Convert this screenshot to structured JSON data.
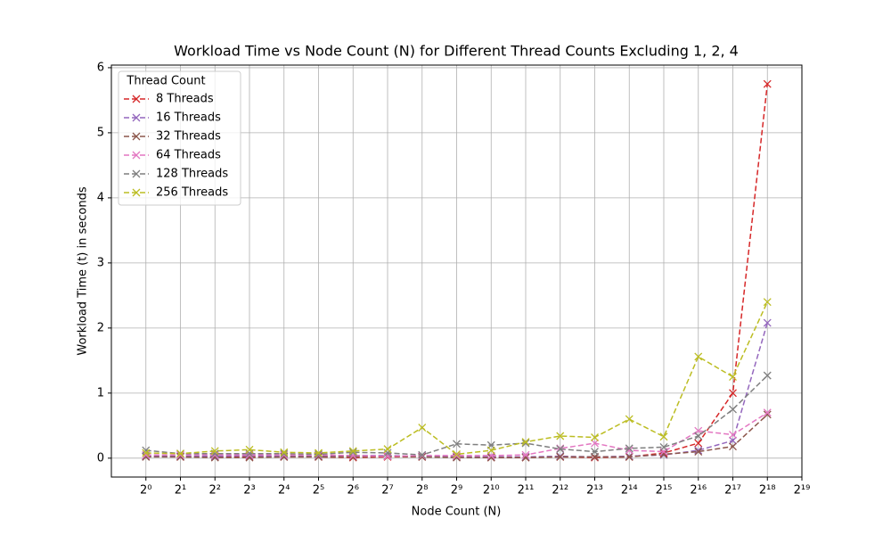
{
  "chart_data": {
    "type": "line",
    "title": "Workload Time vs Node Count (N) for Different Thread Counts Excluding 1, 2, 4",
    "xlabel": "Node Count (N)",
    "ylabel": "Workload Time (t) in seconds",
    "legend_title": "Thread Count",
    "legend_loc": "upper left",
    "grid": true,
    "xscale": "log2",
    "linestyle": "dashed",
    "marker": "x",
    "x": [
      1,
      2,
      4,
      8,
      16,
      32,
      64,
      128,
      256,
      512,
      1024,
      2048,
      4096,
      8192,
      16384,
      32768,
      65536,
      131072,
      262144
    ],
    "xlim": [
      0.5,
      524288
    ],
    "xticks": [
      {
        "value": 1,
        "label": "2⁰"
      },
      {
        "value": 2,
        "label": "2¹"
      },
      {
        "value": 4,
        "label": "2²"
      },
      {
        "value": 8,
        "label": "2³"
      },
      {
        "value": 16,
        "label": "2⁴"
      },
      {
        "value": 32,
        "label": "2⁵"
      },
      {
        "value": 64,
        "label": "2⁶"
      },
      {
        "value": 128,
        "label": "2⁷"
      },
      {
        "value": 256,
        "label": "2⁸"
      },
      {
        "value": 512,
        "label": "2⁹"
      },
      {
        "value": 1024,
        "label": "2¹⁰"
      },
      {
        "value": 2048,
        "label": "2¹¹"
      },
      {
        "value": 4096,
        "label": "2¹²"
      },
      {
        "value": 8192,
        "label": "2¹³"
      },
      {
        "value": 16384,
        "label": "2¹⁴"
      },
      {
        "value": 32768,
        "label": "2¹⁵"
      },
      {
        "value": 65536,
        "label": "2¹⁶"
      },
      {
        "value": 131072,
        "label": "2¹⁷"
      },
      {
        "value": 262144,
        "label": "2¹⁸"
      },
      {
        "value": 524288,
        "label": "2¹⁹"
      }
    ],
    "ylim": [
      -0.29,
      6.04
    ],
    "yticks": [
      0,
      1,
      2,
      3,
      4,
      5,
      6
    ],
    "series": [
      {
        "name": "8 Threads",
        "color": "#d62728",
        "values": [
          0.03,
          0.02,
          0.02,
          0.02,
          0.02,
          0.02,
          0.01,
          0.02,
          0.02,
          0.02,
          0.01,
          0.01,
          0.02,
          0.01,
          0.02,
          0.08,
          0.23,
          1.0,
          5.75
        ]
      },
      {
        "name": "16 Threads",
        "color": "#9467bd",
        "values": [
          0.03,
          0.03,
          0.03,
          0.04,
          0.03,
          0.03,
          0.04,
          0.04,
          0.03,
          0.02,
          0.02,
          0.02,
          0.03,
          0.02,
          0.03,
          0.05,
          0.12,
          0.27,
          2.08
        ]
      },
      {
        "name": "32 Threads",
        "color": "#8c564b",
        "values": [
          0.02,
          0.02,
          0.01,
          0.01,
          0.02,
          0.02,
          0.02,
          0.03,
          0.02,
          0.01,
          0.01,
          0.01,
          0.02,
          0.02,
          0.02,
          0.06,
          0.1,
          0.18,
          0.67
        ]
      },
      {
        "name": "64 Threads",
        "color": "#e377c2",
        "values": [
          0.05,
          0.05,
          0.05,
          0.05,
          0.05,
          0.05,
          0.04,
          0.03,
          0.04,
          0.04,
          0.04,
          0.05,
          0.15,
          0.23,
          0.12,
          0.1,
          0.42,
          0.36,
          0.7
        ]
      },
      {
        "name": "128 Threads",
        "color": "#7f7f7f",
        "values": [
          0.12,
          0.07,
          0.07,
          0.07,
          0.07,
          0.06,
          0.09,
          0.08,
          0.05,
          0.22,
          0.2,
          0.23,
          0.14,
          0.1,
          0.15,
          0.17,
          0.34,
          0.75,
          1.27
        ]
      },
      {
        "name": "256 Threads",
        "color": "#bcbd22",
        "values": [
          0.08,
          0.07,
          0.11,
          0.13,
          0.09,
          0.08,
          0.11,
          0.14,
          0.47,
          0.06,
          0.12,
          0.25,
          0.34,
          0.32,
          0.6,
          0.33,
          1.56,
          1.25,
          2.4
        ]
      }
    ]
  }
}
